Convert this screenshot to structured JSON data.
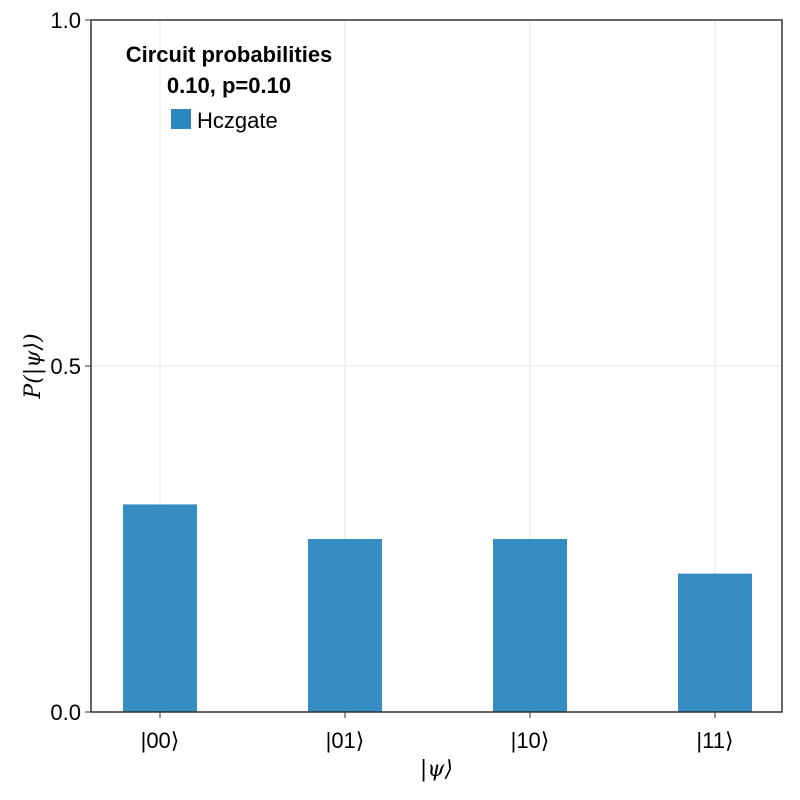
{
  "chart_data": {
    "type": "bar",
    "categories": [
      "|00⟩",
      "|01⟩",
      "|10⟩",
      "|11⟩"
    ],
    "series": [
      {
        "name": "Hczgate",
        "values": [
          0.3,
          0.25,
          0.25,
          0.2
        ],
        "color": "#2b87c0"
      }
    ],
    "xlabel": "|ψ⟩",
    "ylabel": "P(|ψ⟩)",
    "ylim": [
      0,
      1
    ],
    "yticks": [
      0,
      0.5,
      1
    ],
    "ytick_labels": [
      "0.0",
      "0.5",
      "1.0"
    ],
    "grid": true,
    "legend": {
      "title_line1": "Circuit probabilities",
      "title_line2": "0.10, p=0.10",
      "placement": "top-left"
    }
  }
}
